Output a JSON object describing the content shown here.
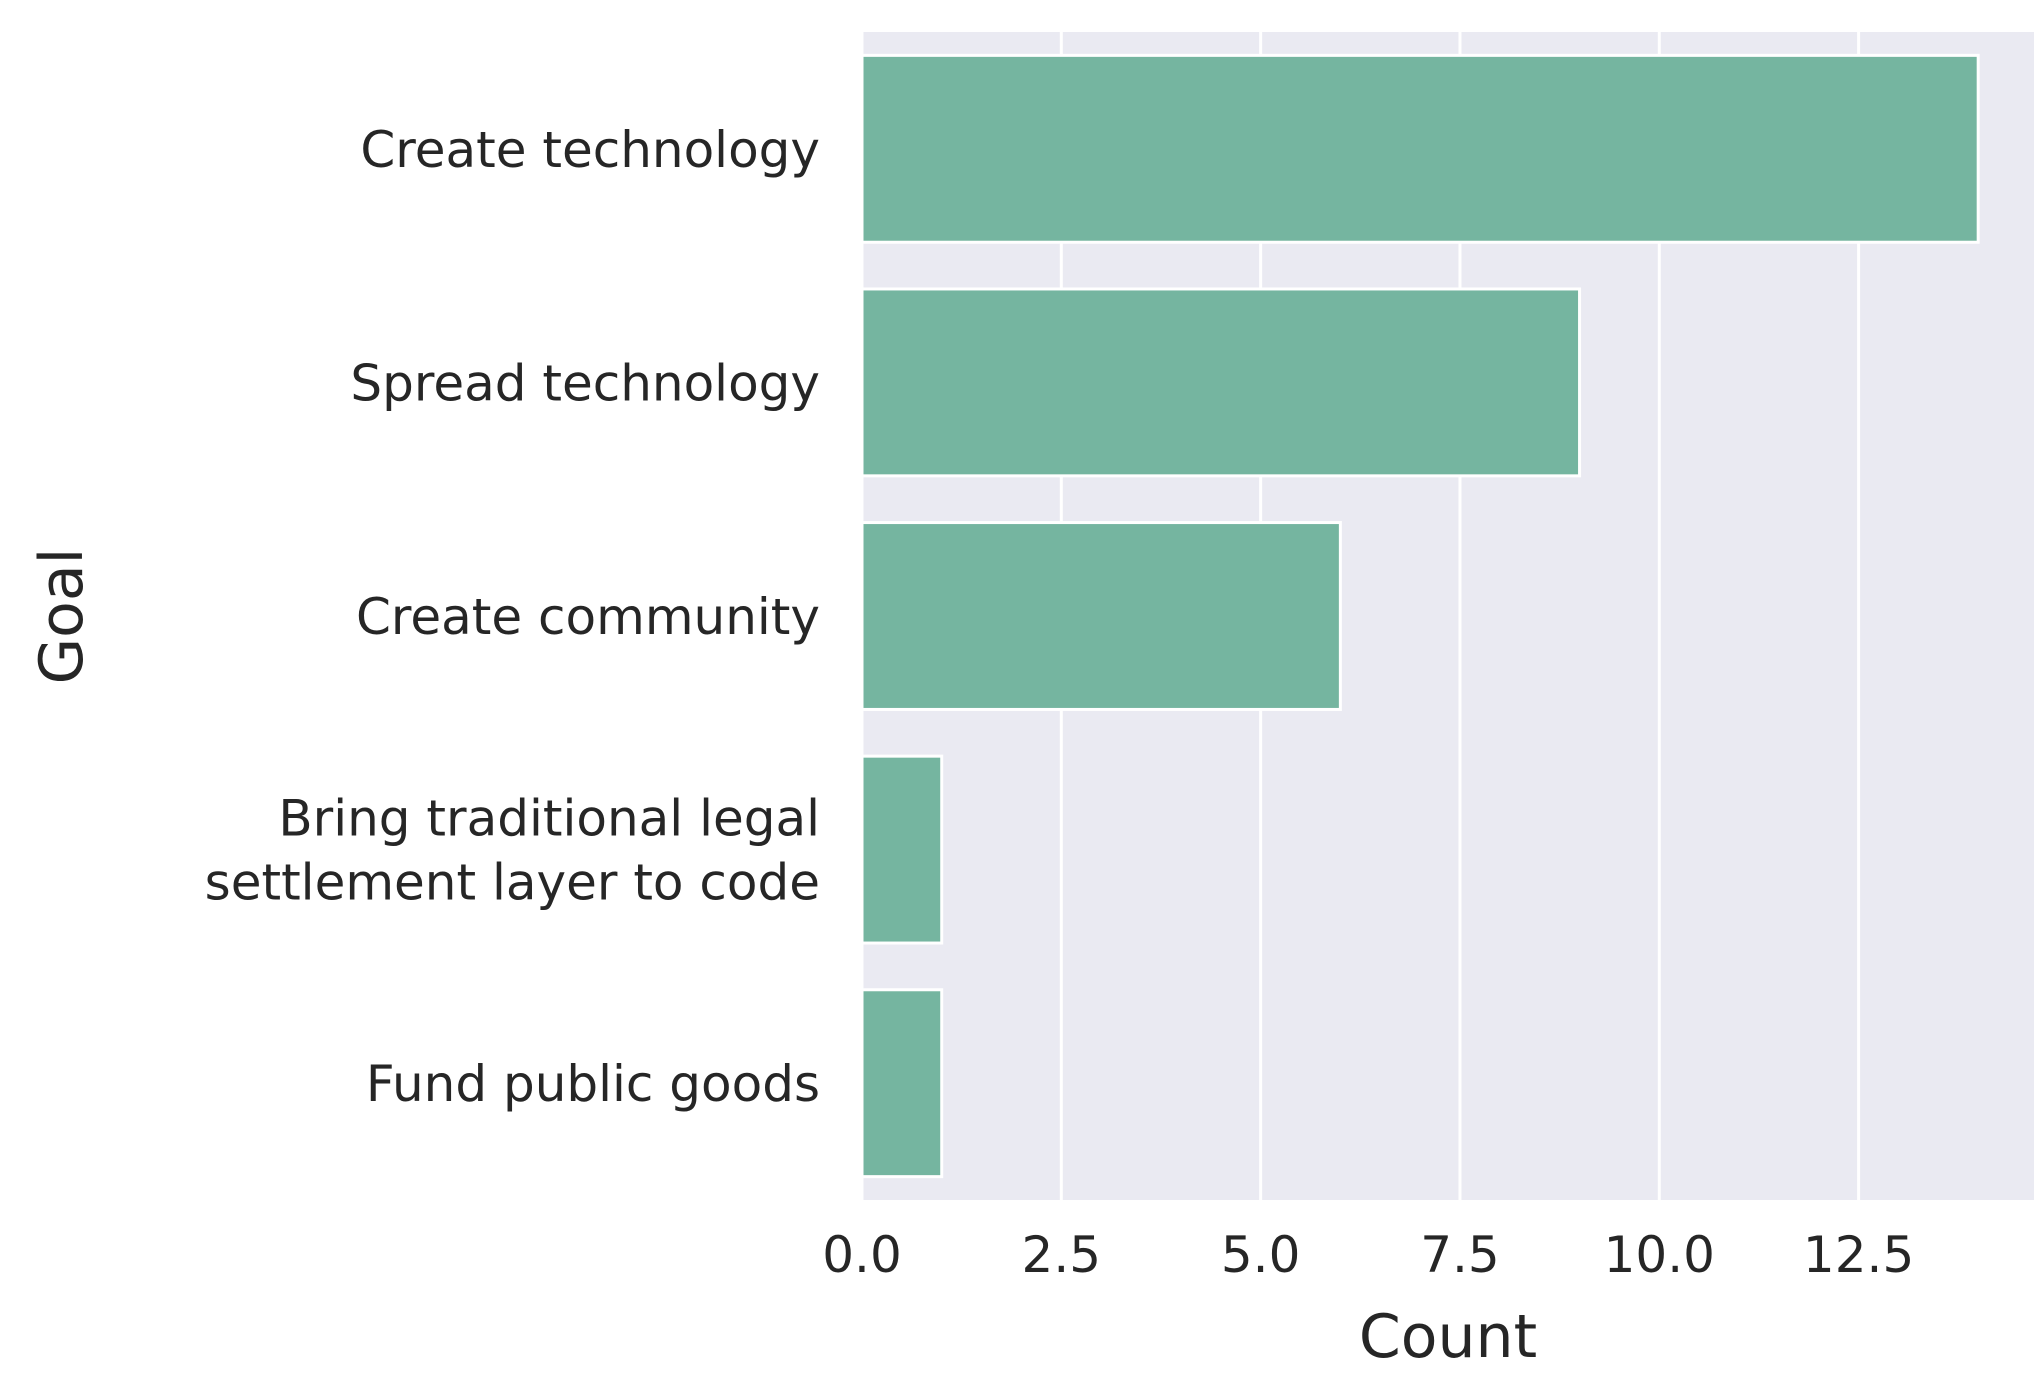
{
  "chart_data": {
    "type": "bar",
    "orientation": "horizontal",
    "title": "",
    "xlabel": "Count",
    "ylabel": "Goal",
    "categories": [
      [
        "Create technology"
      ],
      [
        "Spread technology"
      ],
      [
        "Create community"
      ],
      [
        "Bring traditional legal",
        "settlement layer to code"
      ],
      [
        "Fund public goods"
      ]
    ],
    "values": [
      14,
      9,
      6,
      1,
      1
    ],
    "xlim": [
      0,
      14.7
    ],
    "xticks": [
      "0.0",
      "2.5",
      "5.0",
      "7.5",
      "10.0",
      "12.5"
    ],
    "xtick_values": [
      0,
      2.5,
      5,
      7.5,
      10,
      12.5
    ],
    "grid": true,
    "legend": "none",
    "colors": {
      "bar": "#75b5a0",
      "plot_background": "#eaeaf2",
      "grid": "#ffffff",
      "text": "#262626"
    }
  }
}
